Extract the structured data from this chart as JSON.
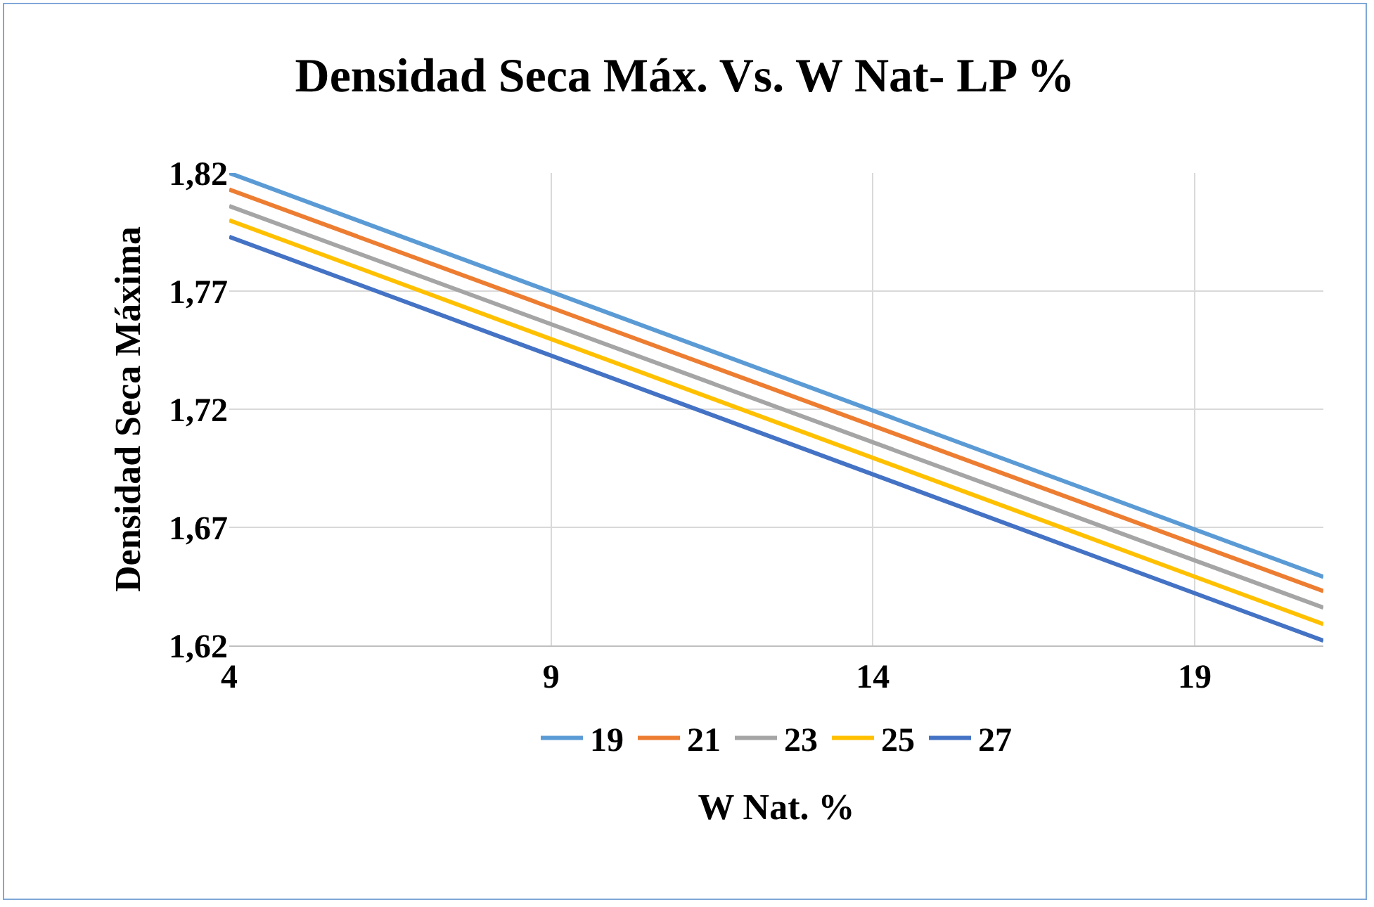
{
  "chart_data": {
    "type": "line",
    "title": "Densidad Seca Máx. Vs. W Nat- LP %",
    "xlabel": "W Nat. %",
    "ylabel": "Densidad Seca Máxima",
    "x": [
      4,
      21
    ],
    "xlim": [
      4,
      21
    ],
    "xticks": [
      4,
      9,
      14,
      19
    ],
    "ylim": [
      1.62,
      1.82
    ],
    "yticks": [
      {
        "value": 1.62,
        "label": "1,62"
      },
      {
        "value": 1.67,
        "label": "1,67"
      },
      {
        "value": 1.72,
        "label": "1,72"
      },
      {
        "value": 1.77,
        "label": "1,77"
      },
      {
        "value": 1.82,
        "label": "1,82"
      }
    ],
    "grid": true,
    "legend": "bottom",
    "marker": "none",
    "line_style": "solid",
    "series": [
      {
        "name": "19",
        "color": "#5b9bd5",
        "values": [
          1.82,
          1.649
        ]
      },
      {
        "name": "21",
        "color": "#ed7d31",
        "values": [
          1.813,
          1.643
        ]
      },
      {
        "name": "23",
        "color": "#a5a5a5",
        "values": [
          1.806,
          1.636
        ]
      },
      {
        "name": "25",
        "color": "#ffc000",
        "values": [
          1.8,
          1.629
        ]
      },
      {
        "name": "27",
        "color": "#4472c4",
        "values": [
          1.793,
          1.622
        ]
      }
    ]
  }
}
